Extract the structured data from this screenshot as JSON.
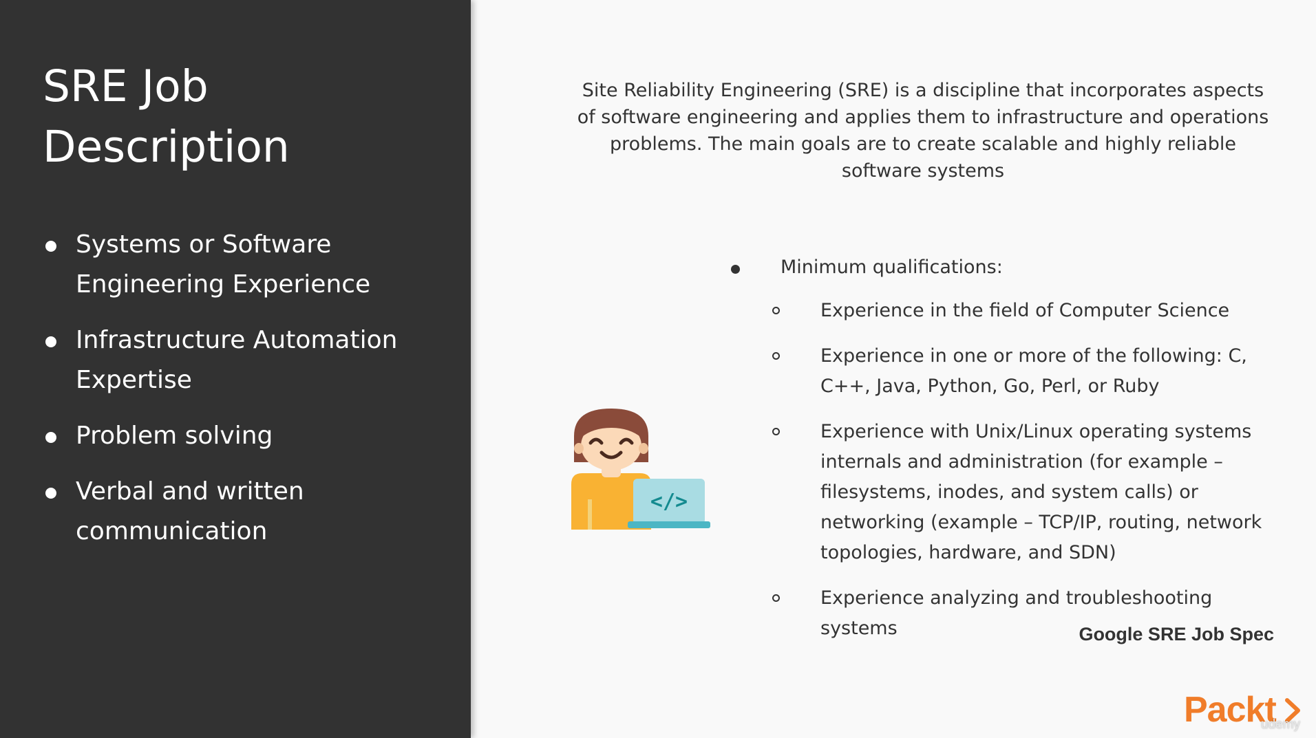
{
  "left_panel": {
    "title": "SRE Job Description",
    "items": [
      {
        "label": "Systems or Software Engineering Experience"
      },
      {
        "label": "Infrastructure Automation Expertise"
      },
      {
        "label": "Problem solving"
      },
      {
        "label": "Verbal and written communication"
      }
    ]
  },
  "main": {
    "intro": "Site Reliability Engineering (SRE) is a discipline that incorporates aspects of software engineering and applies them to infrastructure and operations problems. The main goals are to create scalable and highly reliable software systems",
    "qualifications": {
      "heading": "Minimum qualifications:",
      "items": [
        {
          "text": "Experience in the field of Computer Science"
        },
        {
          "text": "Experience in one or more of the following: C, C++, Java, Python, Go, Perl, or Ruby"
        },
        {
          "text": "Experience with Unix/Linux operating systems internals and administration (for example – filesystems, inodes, and system calls) or networking (example – TCP/IP, routing, network topologies, hardware, and SDN)"
        },
        {
          "text": "Experience analyzing and troubleshooting systems"
        }
      ]
    },
    "source": "Google SRE Job Spec"
  },
  "branding": {
    "logo_text": "Packt",
    "watermark": "udemy"
  },
  "illustration": {
    "code_glyph": "</>",
    "icon": "developer-with-laptop-icon"
  },
  "colors": {
    "left_panel_bg": "#323232",
    "slide_bg": "#f9f9f9",
    "brand_orange": "#f07d2a",
    "laptop_teal": "#4cb6c4"
  }
}
